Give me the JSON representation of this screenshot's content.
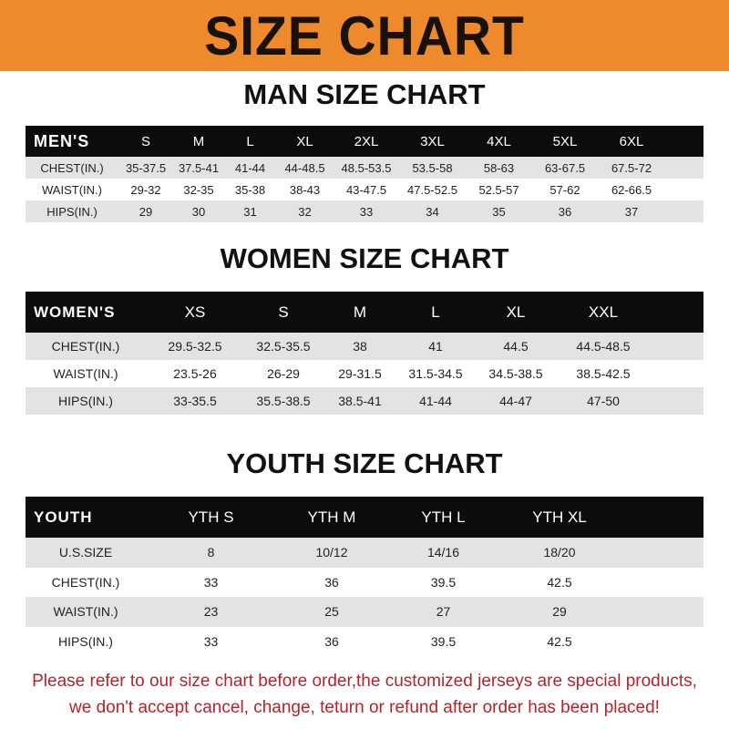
{
  "title": "SIZE CHART",
  "men": {
    "title": "MAN SIZE CHART",
    "header": [
      "MEN'S",
      "S",
      "M",
      "L",
      "XL",
      "2XL",
      "3XL",
      "4XL",
      "5XL",
      "6XL"
    ],
    "rows": [
      [
        "CHEST(IN.)",
        "35-37.5",
        "37.5-41",
        "41-44",
        "44-48.5",
        "48.5-53.5",
        "53.5-58",
        "58-63",
        "63-67.5",
        "67.5-72"
      ],
      [
        "WAIST(IN.)",
        "29-32",
        "32-35",
        "35-38",
        "38-43",
        "43-47.5",
        "47.5-52.5",
        "52.5-57",
        "57-62",
        "62-66.5"
      ],
      [
        "HIPS(IN.)",
        "29",
        "30",
        "31",
        "32",
        "33",
        "34",
        "35",
        "36",
        "37"
      ]
    ]
  },
  "women": {
    "title": "WOMEN SIZE CHART",
    "header": [
      "WOMEN'S",
      "XS",
      "S",
      "M",
      "L",
      "XL",
      "XXL"
    ],
    "rows": [
      [
        "CHEST(IN.)",
        "29.5-32.5",
        "32.5-35.5",
        "38",
        "41",
        "44.5",
        "44.5-48.5"
      ],
      [
        "WAIST(IN.)",
        "23.5-26",
        "26-29",
        "29-31.5",
        "31.5-34.5",
        "34.5-38.5",
        "38.5-42.5"
      ],
      [
        "HIPS(IN.)",
        "33-35.5",
        "35.5-38.5",
        "38.5-41",
        "41-44",
        "44-47",
        "47-50"
      ]
    ]
  },
  "youth": {
    "title": "YOUTH SIZE CHART",
    "header": [
      "YOUTH",
      "YTH S",
      "YTH M",
      "YTH L",
      "YTH XL"
    ],
    "rows": [
      [
        "U.S.SIZE",
        "8",
        "10/12",
        "14/16",
        "18/20"
      ],
      [
        "CHEST(IN.)",
        "33",
        "36",
        "39.5",
        "42.5"
      ],
      [
        "WAIST(IN.)",
        "23",
        "25",
        "27",
        "29"
      ],
      [
        "HIPS(IN.)",
        "33",
        "36",
        "39.5",
        "42.5"
      ]
    ]
  },
  "notice": {
    "line1": "Please refer to our size chart before order,the customized jerseys are special products,",
    "line2": "we don't accept cancel, change, teturn or refund after order has been placed!"
  },
  "colors": {
    "banner": "#ef8a2c",
    "notice": "#b3232b",
    "header_row": "#0c0c0c",
    "stripe": "#e3e3e3"
  }
}
